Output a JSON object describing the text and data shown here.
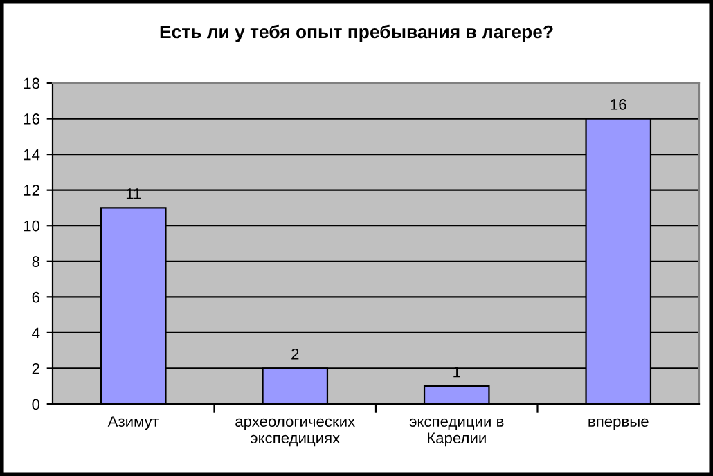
{
  "chart_data": {
    "type": "bar",
    "title": "Есть ли у тебя опыт пребывания в лагере?",
    "categories": [
      "Азимут",
      "археологических\nэкспедициях",
      "экспедиции в\nКарелии",
      "впервые"
    ],
    "values": [
      11,
      2,
      1,
      16
    ],
    "color": "#9999ff",
    "ylim": [
      0,
      18
    ],
    "yticks": [
      0,
      2,
      4,
      6,
      8,
      10,
      12,
      14,
      16,
      18
    ],
    "grid": "y",
    "data_labels": true
  }
}
